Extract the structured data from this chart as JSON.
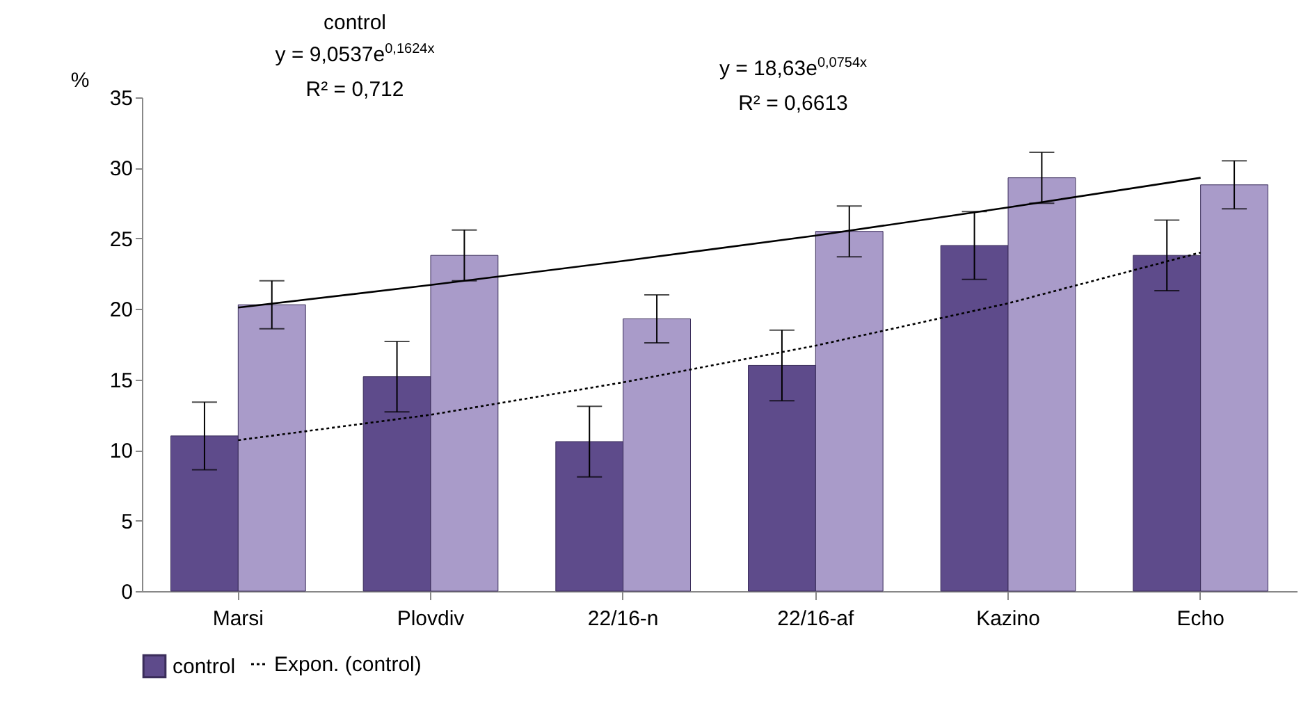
{
  "chart_data": {
    "type": "bar",
    "ylabel": "%",
    "categories": [
      "Marsi",
      "Plovdiv",
      "22/16-n",
      "22/16-af",
      "Kazino",
      "Echo"
    ],
    "series": [
      {
        "name": "control",
        "color": "#5e4b8b",
        "values": [
          11.0,
          15.2,
          10.6,
          16.0,
          24.5,
          23.8
        ],
        "errors": [
          2.4,
          2.5,
          2.5,
          2.5,
          2.4,
          2.5
        ]
      },
      {
        "color": "#a99bc9",
        "values": [
          20.3,
          23.8,
          19.3,
          25.5,
          29.3,
          28.8
        ],
        "errors": [
          1.7,
          1.8,
          1.7,
          1.8,
          1.8,
          1.7
        ]
      },
      {
        "name": "Expon. (control)",
        "type": "line",
        "color": "#000000",
        "line_style": "dotted",
        "values": [
          10.7,
          12.5,
          14.8,
          17.4,
          20.4,
          24.0
        ]
      },
      {
        "type": "line",
        "color": "#000000",
        "line_style": "solid",
        "values": [
          20.1,
          21.7,
          23.4,
          25.2,
          27.2,
          29.3
        ]
      }
    ],
    "ylim": [
      0,
      35
    ],
    "yticks": [
      0,
      5,
      10,
      15,
      20,
      25,
      30,
      35
    ],
    "grid": false,
    "legend": "bottom",
    "annotations": [
      "control",
      "y = 9,0537e$^{0,1624x}$",
      "R² = 0,712",
      "y = 18,63e$^{0,0754x}$",
      "R² = 0,6613"
    ]
  }
}
